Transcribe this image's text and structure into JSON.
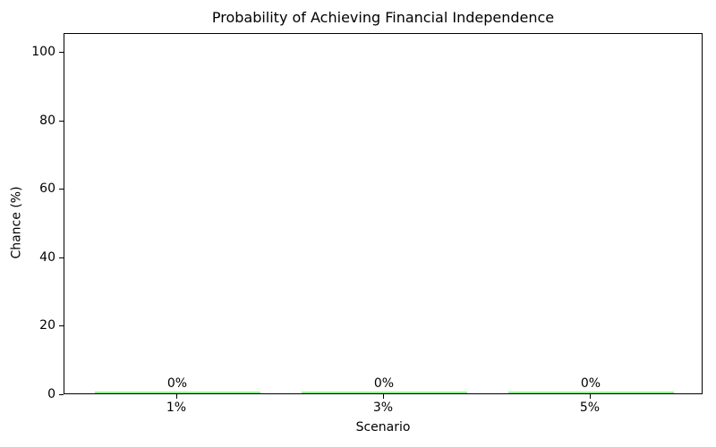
{
  "chart_data": {
    "type": "bar",
    "title": "Probability of Achieving Financial Independence",
    "xlabel": "Scenario",
    "ylabel": "Chance (%)",
    "categories": [
      "1%",
      "3%",
      "5%"
    ],
    "values": [
      0,
      0,
      0
    ],
    "bar_labels": [
      "0%",
      "0%",
      "0%"
    ],
    "yticks": [
      0,
      20,
      40,
      60,
      80,
      100
    ],
    "ylim": [
      0,
      105.5
    ],
    "bar_color": "#90EE90",
    "axis_color": "#000000",
    "text_color": "#000000",
    "background": "#FFFFFF",
    "grid": false,
    "legend": "none"
  }
}
